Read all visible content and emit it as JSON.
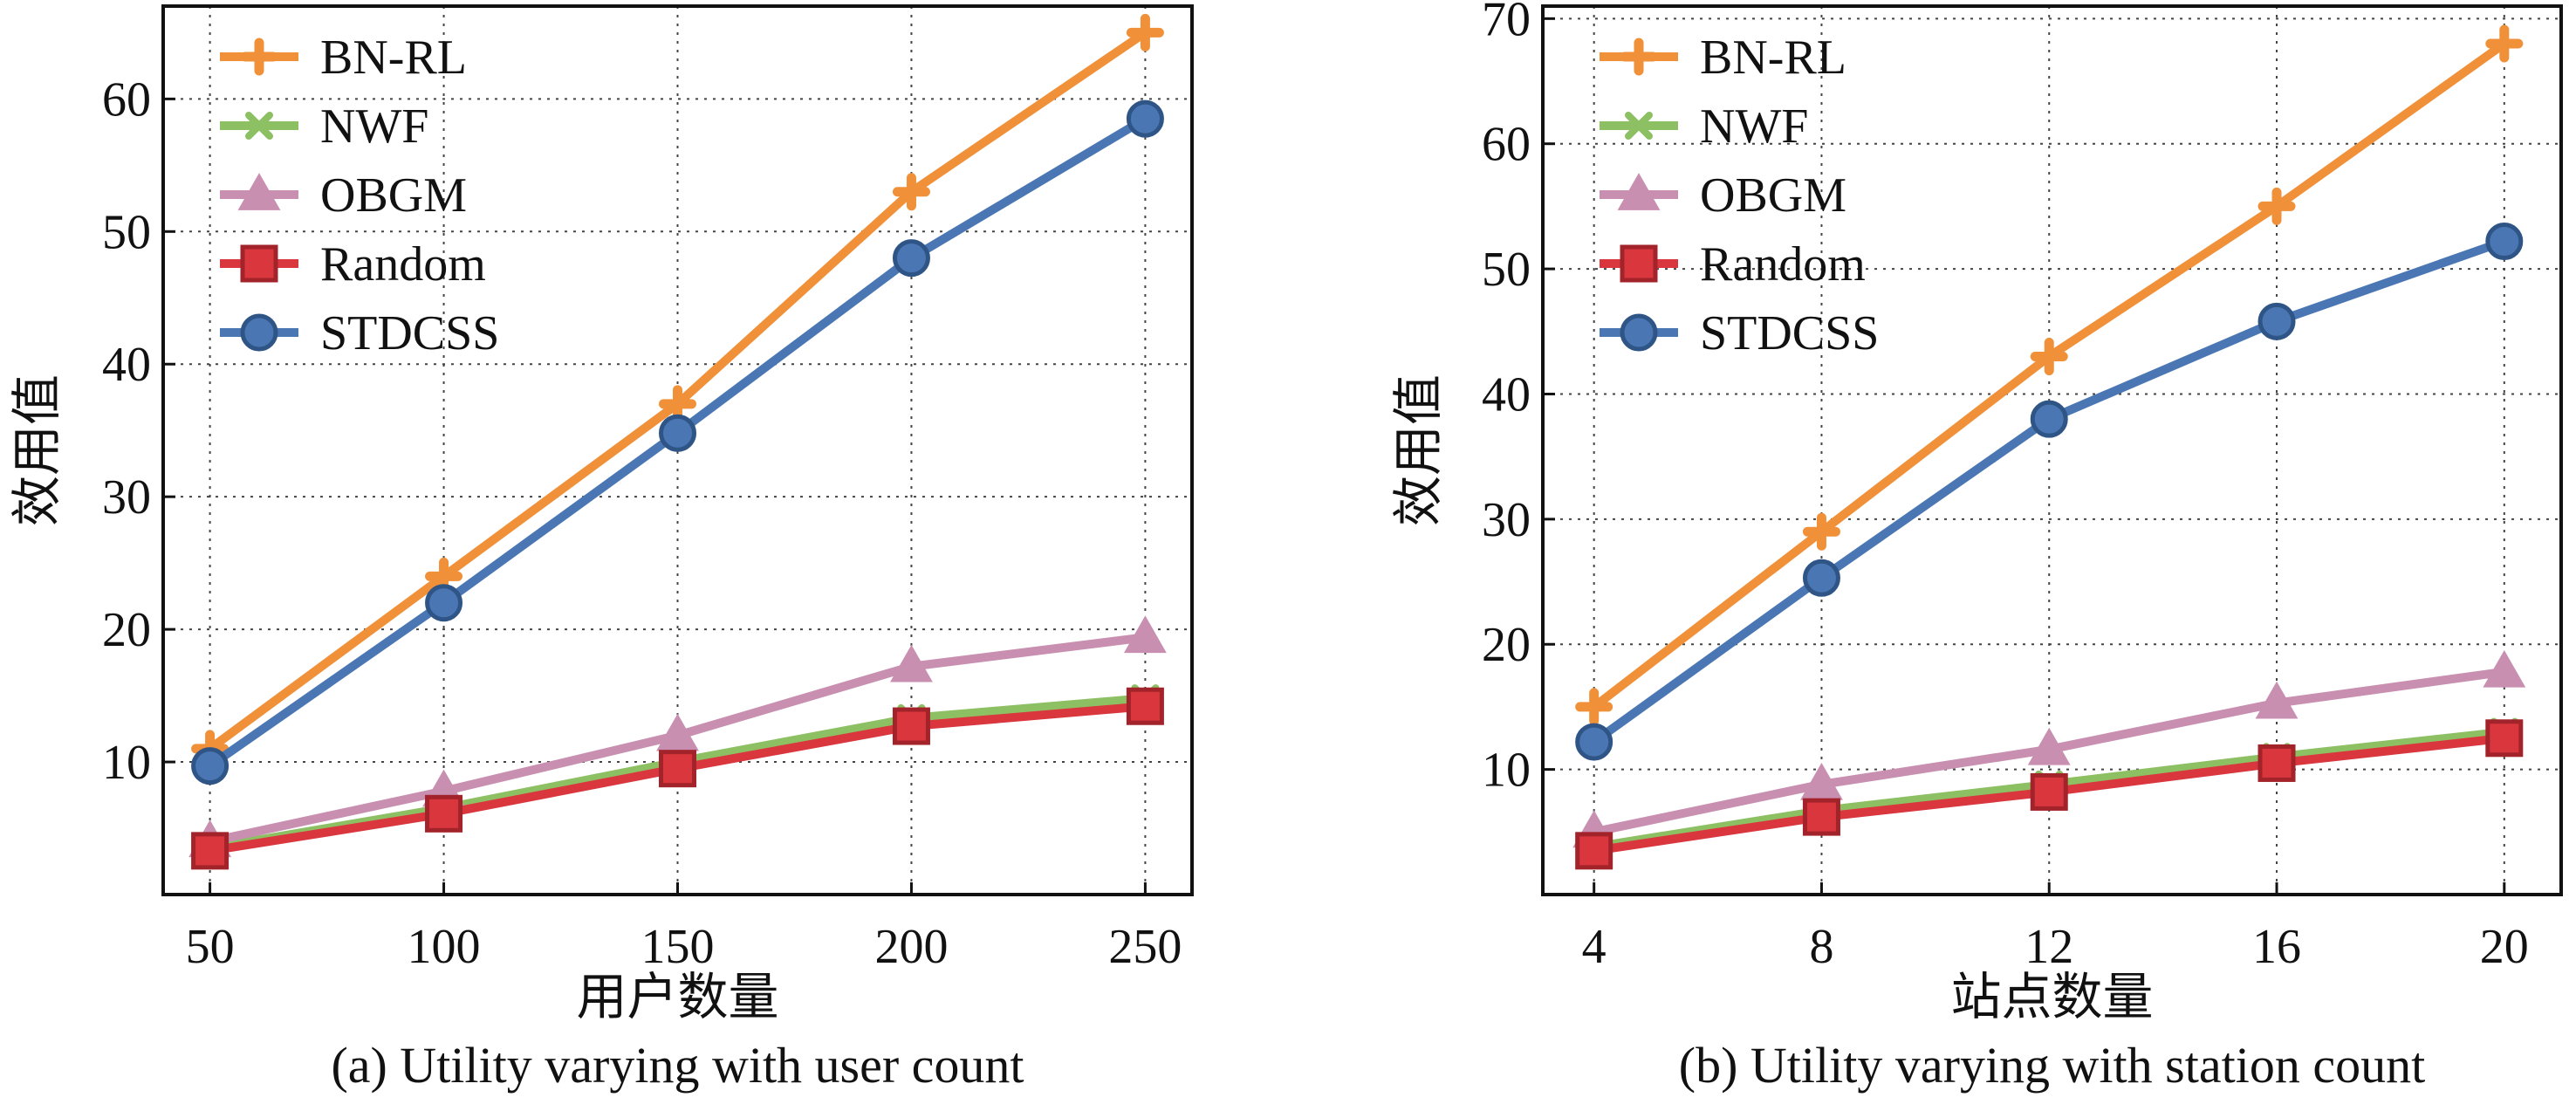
{
  "chart_data": [
    {
      "type": "line",
      "caption": "(a) Utility varying with user count",
      "xlabel": "用户数量",
      "ylabel": "效用值",
      "x": [
        50,
        100,
        150,
        200,
        250
      ],
      "xticks": [
        "50",
        "100",
        "150",
        "200",
        "250"
      ],
      "xlim": [
        40,
        260
      ],
      "ylim": [
        0,
        67
      ],
      "yticks": [
        10,
        20,
        30,
        40,
        50,
        60
      ],
      "legend_position": "top-left",
      "grid": true,
      "series": [
        {
          "name": "BN-RL",
          "color": "#f0913a",
          "marker": "plus",
          "values": [
            11,
            24,
            37,
            53,
            65
          ]
        },
        {
          "name": "NWF",
          "color": "#8cc063",
          "marker": "x",
          "values": [
            3.5,
            6.5,
            10,
            13.3,
            14.8
          ]
        },
        {
          "name": "OBGM",
          "color": "#c88fb0",
          "marker": "triangle",
          "values": [
            4,
            7.8,
            12,
            17.2,
            19.4
          ]
        },
        {
          "name": "Random",
          "color": "#d9363e",
          "marker": "square",
          "values": [
            3.3,
            6.1,
            9.5,
            12.7,
            14.2
          ]
        },
        {
          "name": "STDCSS",
          "color": "#4a77b4",
          "marker": "circle",
          "values": [
            9.7,
            22,
            34.8,
            48,
            58.5
          ]
        }
      ]
    },
    {
      "type": "line",
      "caption": "(b) Utility varying with station count",
      "xlabel": "站点数量",
      "ylabel": "效用值",
      "x": [
        4,
        8,
        12,
        16,
        20
      ],
      "xticks": [
        "4",
        "8",
        "12",
        "16",
        "20"
      ],
      "xlim": [
        3.1,
        21
      ],
      "ylim": [
        0,
        71
      ],
      "yticks": [
        10,
        20,
        30,
        40,
        50,
        60,
        70
      ],
      "legend_position": "top-left",
      "grid": true,
      "series": [
        {
          "name": "BN-RL",
          "color": "#f0913a",
          "marker": "plus",
          "values": [
            15,
            29,
            43,
            55,
            68
          ]
        },
        {
          "name": "NWF",
          "color": "#8cc063",
          "marker": "x",
          "values": [
            3.8,
            6.7,
            8.8,
            11,
            13
          ]
        },
        {
          "name": "OBGM",
          "color": "#c88fb0",
          "marker": "triangle",
          "values": [
            5,
            8.8,
            11.6,
            15.3,
            17.8
          ]
        },
        {
          "name": "Random",
          "color": "#d9363e",
          "marker": "square",
          "values": [
            3.5,
            6.2,
            8.2,
            10.5,
            12.5
          ]
        },
        {
          "name": "STDCSS",
          "color": "#4a77b4",
          "marker": "circle",
          "values": [
            12.2,
            25.3,
            38,
            45.8,
            52.2
          ]
        }
      ]
    }
  ]
}
